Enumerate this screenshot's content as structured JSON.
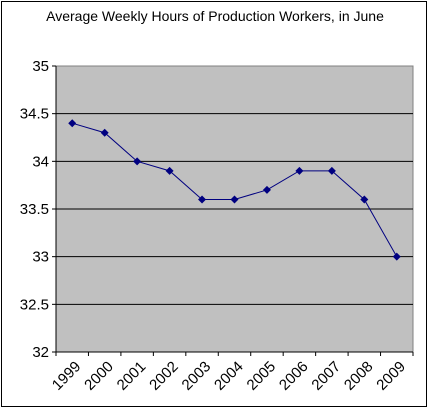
{
  "chart_data": {
    "type": "line",
    "title": "Average Weekly Hours of Production Workers, in June",
    "categories": [
      "1999",
      "2000",
      "2001",
      "2002",
      "2003",
      "2004",
      "2005",
      "2006",
      "2007",
      "2008",
      "2009"
    ],
    "values": [
      34.4,
      34.3,
      34.0,
      33.9,
      33.6,
      33.6,
      33.7,
      33.9,
      33.9,
      33.6,
      33.0
    ],
    "yticks": [
      "32",
      "32.5",
      "33",
      "33.5",
      "34",
      "34.5",
      "35"
    ],
    "ylim": [
      32,
      35
    ],
    "grid": true,
    "legend": "none",
    "colors": {
      "plot_background": "#c0c0c0",
      "line": "#000080",
      "gridline": "#000000"
    }
  }
}
